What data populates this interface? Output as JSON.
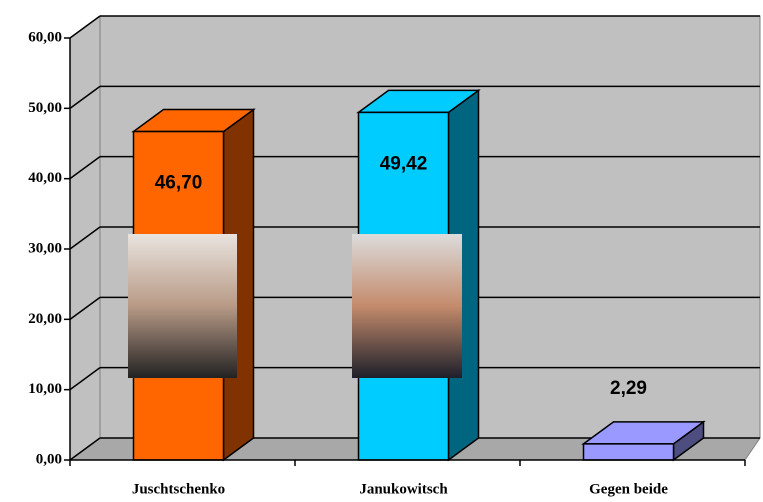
{
  "chart_data": {
    "type": "bar3d",
    "categories": [
      "Juschtschenko",
      "Janukowitsch",
      "Gegen beide"
    ],
    "values": [
      46.7,
      49.42,
      2.29
    ],
    "value_labels": [
      "46,70",
      "49,42",
      "2,29"
    ],
    "colors": [
      "#ff6600",
      "#00ccff",
      "#9999ff"
    ],
    "ylim": [
      0,
      60
    ],
    "yticks": [
      {
        "value": 0,
        "label": "0,00"
      },
      {
        "value": 10,
        "label": "10,00"
      },
      {
        "value": 20,
        "label": "20,00"
      },
      {
        "value": 30,
        "label": "30,00"
      },
      {
        "value": 40,
        "label": "40,00"
      },
      {
        "value": 50,
        "label": "50,00"
      },
      {
        "value": 60,
        "label": "60,00"
      }
    ],
    "grid": true
  }
}
